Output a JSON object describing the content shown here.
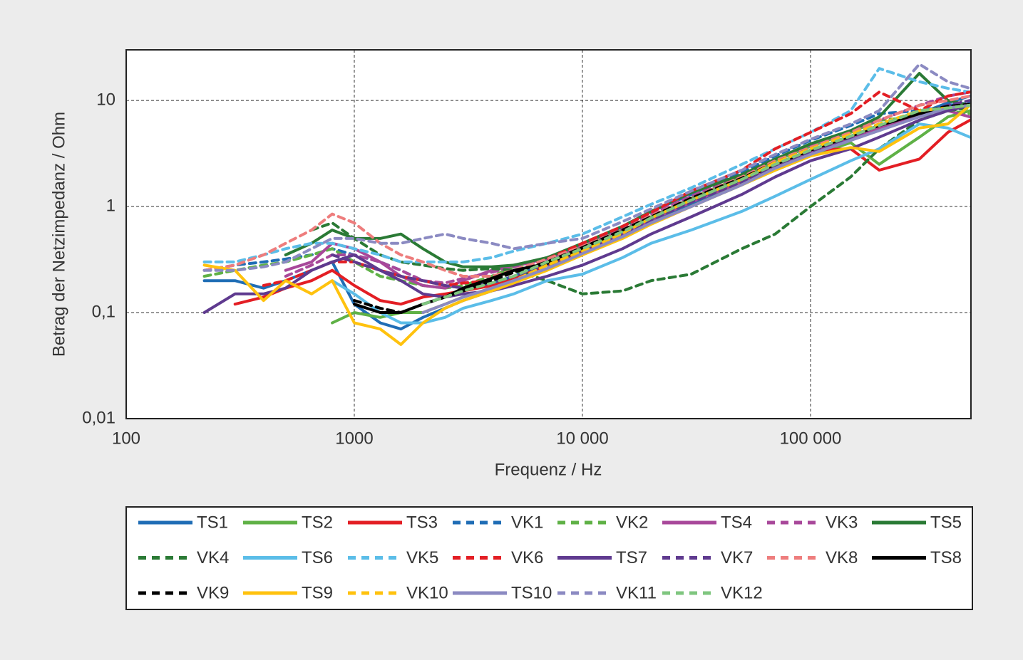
{
  "chart_data": {
    "type": "line",
    "x_label": "Frequenz / Hz",
    "y_label": "Betrag der Netzimpedanz / Ohm",
    "log_x": true,
    "log_y": true,
    "grid": true,
    "legend": "bottom",
    "xlim": [
      100,
      505000
    ],
    "ylim": [
      0.01,
      30
    ],
    "xticks": [
      100,
      1000,
      {
        "value": 10000,
        "label": "10 000"
      },
      {
        "value": 100000,
        "label": "100 000"
      }
    ],
    "yticks": [
      {
        "value": 0.01,
        "label": "0,01"
      },
      {
        "value": 0.1,
        "label": "0,1"
      },
      1,
      10
    ],
    "x": [
      220,
      300,
      400,
      500,
      650,
      800,
      1000,
      1300,
      1600,
      2000,
      2500,
      3000,
      4000,
      5000,
      7000,
      10000,
      15000,
      20000,
      30000,
      50000,
      70000,
      100000,
      150000,
      200000,
      300000,
      400000,
      500000
    ],
    "series": [
      {
        "name": "TS1",
        "color": "#1f6db5",
        "line_style": "solid",
        "values": [
          0.2,
          0.2,
          0.17,
          0.2,
          0.25,
          0.3,
          0.12,
          0.08,
          0.07,
          0.09,
          0.11,
          0.13,
          0.16,
          0.19,
          0.26,
          0.37,
          0.55,
          0.72,
          1.05,
          1.7,
          2.3,
          3.1,
          4.3,
          5.2,
          7.5,
          9.5,
          11
        ]
      },
      {
        "name": "TS2",
        "color": "#5fb146",
        "line_style": "solid",
        "values": [
          null,
          null,
          null,
          null,
          null,
          0.08,
          0.1,
          0.09,
          0.1,
          0.1,
          0.12,
          0.14,
          0.17,
          0.2,
          0.26,
          0.36,
          0.52,
          0.7,
          1.0,
          1.6,
          2.2,
          3.0,
          4.0,
          2.5,
          4.5,
          7,
          8
        ]
      },
      {
        "name": "TS3",
        "color": "#e31e24",
        "line_style": "solid",
        "values": [
          null,
          0.12,
          0.14,
          0.17,
          0.2,
          0.25,
          0.18,
          0.13,
          0.12,
          0.14,
          0.15,
          0.16,
          0.18,
          0.21,
          0.28,
          0.38,
          0.55,
          0.75,
          1.1,
          1.8,
          2.5,
          3.4,
          3.5,
          2.2,
          2.8,
          5,
          6.5
        ]
      },
      {
        "name": "VK1",
        "color": "#1f6db5",
        "line_style": "dashed",
        "values": [
          0.25,
          0.28,
          0.3,
          0.32,
          0.35,
          0.4,
          0.35,
          0.3,
          0.25,
          0.2,
          0.18,
          0.17,
          0.19,
          0.22,
          0.3,
          0.42,
          0.65,
          0.9,
          1.3,
          2.1,
          3.0,
          4.2,
          5.8,
          7.5,
          8,
          9,
          9.5
        ]
      },
      {
        "name": "VK2",
        "color": "#5fb146",
        "line_style": "dashed",
        "values": [
          0.22,
          0.25,
          0.28,
          0.3,
          0.35,
          0.4,
          0.3,
          0.22,
          0.2,
          0.18,
          0.17,
          0.18,
          0.22,
          0.27,
          0.33,
          0.42,
          0.6,
          0.8,
          1.2,
          1.9,
          2.7,
          3.7,
          5,
          6.5,
          7,
          8,
          7.5
        ]
      },
      {
        "name": "TS4",
        "color": "#a8489a",
        "line_style": "solid",
        "values": [
          null,
          null,
          null,
          0.25,
          0.3,
          0.45,
          0.4,
          0.3,
          0.22,
          0.18,
          0.17,
          0.2,
          0.25,
          0.28,
          0.32,
          0.4,
          0.55,
          0.75,
          1.1,
          1.7,
          2.4,
          3.3,
          4.5,
          5.5,
          7.5,
          8,
          7
        ]
      },
      {
        "name": "VK3",
        "color": "#a8489a",
        "line_style": "dashed",
        "values": [
          null,
          null,
          null,
          0.22,
          0.28,
          0.35,
          0.35,
          0.3,
          0.25,
          0.2,
          0.19,
          0.21,
          0.24,
          0.27,
          0.33,
          0.43,
          0.62,
          0.85,
          1.25,
          2.0,
          2.8,
          3.8,
          5.2,
          6.5,
          9,
          11,
          12
        ]
      },
      {
        "name": "TS5",
        "color": "#2a7a35",
        "line_style": "solid",
        "values": [
          null,
          null,
          null,
          0.35,
          0.45,
          0.6,
          0.5,
          0.5,
          0.55,
          0.4,
          0.3,
          0.27,
          0.27,
          0.28,
          0.33,
          0.45,
          0.65,
          0.9,
          1.35,
          2.0,
          2.8,
          3.9,
          5.2,
          7,
          18,
          10,
          9
        ]
      },
      {
        "name": "VK4",
        "color": "#2a7a35",
        "line_style": "dashed",
        "values": [
          null,
          null,
          null,
          null,
          0.6,
          0.7,
          0.5,
          0.35,
          0.3,
          0.28,
          0.26,
          0.25,
          0.26,
          0.25,
          0.2,
          0.15,
          0.16,
          0.2,
          0.23,
          0.4,
          0.55,
          1.0,
          1.9,
          3.5,
          6.5,
          8,
          8.5
        ]
      },
      {
        "name": "TS6",
        "color": "#5bbde8",
        "line_style": "solid",
        "values": [
          null,
          null,
          null,
          null,
          null,
          0.2,
          0.15,
          0.1,
          0.08,
          0.08,
          0.09,
          0.11,
          0.13,
          0.15,
          0.2,
          0.23,
          0.33,
          0.45,
          0.6,
          0.9,
          1.25,
          1.8,
          2.7,
          3.5,
          6,
          5.5,
          4.5
        ]
      },
      {
        "name": "VK5",
        "color": "#5bbde8",
        "line_style": "dashed",
        "values": [
          0.3,
          0.3,
          0.35,
          0.4,
          0.45,
          0.45,
          0.4,
          0.35,
          0.3,
          0.3,
          0.3,
          0.3,
          0.33,
          0.38,
          0.45,
          0.55,
          0.8,
          1.05,
          1.5,
          2.5,
          3.5,
          5,
          8,
          20,
          15,
          13,
          12
        ]
      },
      {
        "name": "VK6",
        "color": "#e31e24",
        "line_style": "dashed",
        "values": [
          null,
          null,
          0.18,
          0.2,
          0.25,
          0.3,
          0.3,
          0.25,
          0.22,
          0.2,
          0.18,
          0.19,
          0.2,
          0.24,
          0.32,
          0.45,
          0.65,
          0.88,
          1.4,
          2.2,
          3.5,
          5,
          7.5,
          12,
          8,
          11,
          12
        ]
      },
      {
        "name": "TS7",
        "color": "#5f3a8f",
        "line_style": "solid",
        "values": [
          0.1,
          0.15,
          0.15,
          0.17,
          0.25,
          0.3,
          0.35,
          0.25,
          0.2,
          0.15,
          0.14,
          0.15,
          0.16,
          0.18,
          0.22,
          0.28,
          0.4,
          0.55,
          0.8,
          1.3,
          1.9,
          2.7,
          3.5,
          4.5,
          6.5,
          8,
          9
        ]
      },
      {
        "name": "VK7",
        "color": "#5f3a8f",
        "line_style": "dashed",
        "values": [
          null,
          null,
          null,
          null,
          null,
          0.35,
          0.3,
          0.25,
          0.22,
          0.2,
          0.18,
          0.17,
          0.19,
          0.22,
          0.28,
          0.38,
          0.55,
          0.75,
          1.1,
          1.7,
          2.4,
          3.3,
          4.5,
          5.8,
          7.5,
          9,
          10
        ]
      },
      {
        "name": "VK8",
        "color": "#ee7d7d",
        "line_style": "dashed",
        "values": [
          0.25,
          0.28,
          0.35,
          0.45,
          0.6,
          0.85,
          0.7,
          0.45,
          0.35,
          0.3,
          0.25,
          0.22,
          0.22,
          0.25,
          0.32,
          0.42,
          0.6,
          0.82,
          1.2,
          1.9,
          2.7,
          3.6,
          5,
          6.5,
          9,
          10,
          11
        ]
      },
      {
        "name": "TS8",
        "color": "#000000",
        "line_style": "solid",
        "values": [
          null,
          null,
          null,
          null,
          null,
          null,
          0.12,
          0.1,
          0.1,
          0.12,
          0.14,
          0.17,
          0.21,
          0.25,
          0.29,
          0.4,
          0.58,
          0.78,
          1.15,
          1.8,
          2.5,
          3.4,
          4.6,
          5.8,
          7.5,
          8.5,
          9
        ]
      },
      {
        "name": "VK9",
        "color": "#000000",
        "line_style": "dashed",
        "values": [
          null,
          null,
          null,
          null,
          null,
          null,
          0.13,
          0.11,
          0.1,
          0.12,
          0.14,
          0.16,
          0.2,
          0.24,
          0.3,
          0.41,
          0.6,
          0.8,
          1.2,
          1.85,
          2.6,
          3.5,
          4.7,
          6,
          7.8,
          8.8,
          9.2
        ]
      },
      {
        "name": "TS9",
        "color": "#ffc20e",
        "line_style": "solid",
        "values": [
          0.28,
          0.25,
          0.13,
          0.2,
          0.15,
          0.2,
          0.08,
          0.07,
          0.05,
          0.08,
          0.11,
          0.13,
          0.16,
          0.19,
          0.25,
          0.35,
          0.5,
          0.68,
          1.0,
          1.6,
          2.2,
          3.0,
          3.6,
          3.3,
          5.5,
          6,
          9
        ]
      },
      {
        "name": "VK10",
        "color": "#ffc20e",
        "line_style": "dashed",
        "values": [
          null,
          null,
          null,
          null,
          null,
          null,
          null,
          null,
          null,
          0.1,
          0.12,
          0.14,
          0.17,
          0.2,
          0.28,
          0.38,
          0.56,
          0.78,
          1.15,
          1.8,
          2.6,
          3.5,
          4.8,
          6,
          8,
          8.5,
          9
        ]
      },
      {
        "name": "TS10",
        "color": "#8b8ac2",
        "line_style": "solid",
        "values": [
          null,
          null,
          null,
          null,
          null,
          null,
          null,
          null,
          null,
          0.1,
          0.12,
          0.14,
          0.17,
          0.2,
          0.26,
          0.36,
          0.52,
          0.7,
          1.0,
          1.6,
          2.3,
          3.1,
          4.2,
          5.2,
          7,
          8.5,
          9
        ]
      },
      {
        "name": "VK11",
        "color": "#8b8ac2",
        "line_style": "dashed",
        "values": [
          0.25,
          0.25,
          0.27,
          0.3,
          0.4,
          0.5,
          0.5,
          0.45,
          0.45,
          0.5,
          0.55,
          0.5,
          0.45,
          0.4,
          0.45,
          0.5,
          0.72,
          0.95,
          1.4,
          2.2,
          3.1,
          4.3,
          6,
          8,
          22,
          15,
          13
        ]
      },
      {
        "name": "VK12",
        "color": "#7fc67f",
        "line_style": "dashed",
        "values": [
          null,
          null,
          null,
          null,
          null,
          null,
          null,
          null,
          null,
          0.12,
          0.14,
          0.16,
          0.19,
          0.22,
          0.3,
          0.4,
          0.58,
          0.78,
          1.15,
          1.8,
          2.5,
          3.4,
          4.6,
          5.8,
          8,
          8.5,
          9
        ]
      }
    ]
  }
}
